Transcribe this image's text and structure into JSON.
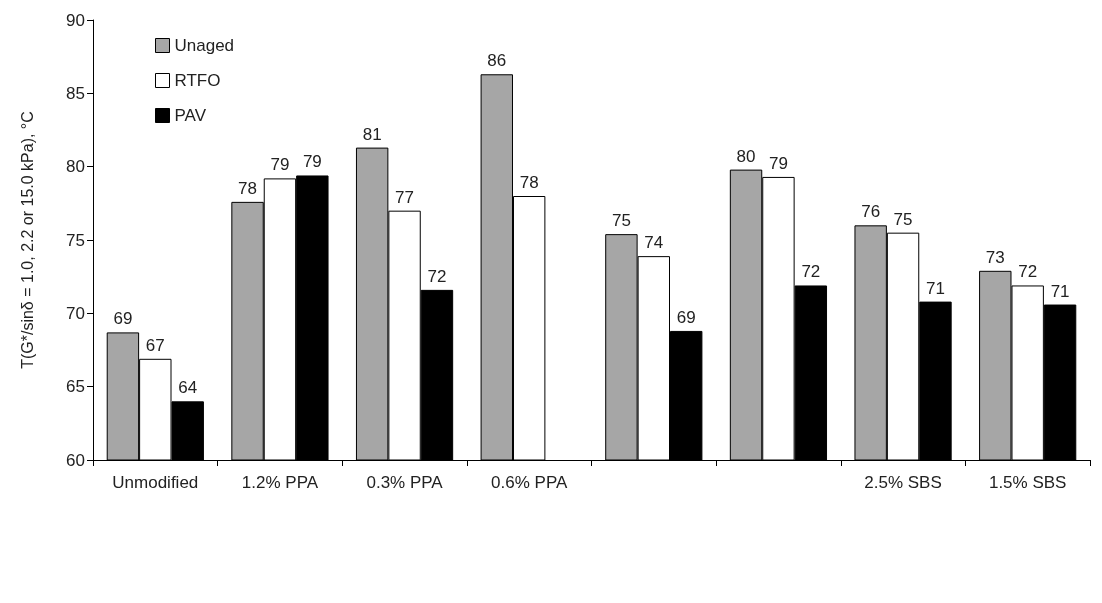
{
  "chart_data": {
    "type": "bar",
    "ylabel": "T(G*/sinδ = 1.0, 2.2 or 15.0 kPa), °C",
    "categories": [
      "Unmodified",
      "1.2% PPA",
      "0.3% PPA",
      "0.6% PPA",
      null,
      null,
      "2.5% SBS",
      "1.5% SBS"
    ],
    "series": [
      {
        "name": "Unaged",
        "color": "#a6a6a6",
        "values": [
          68.7,
          77.6,
          81.3,
          86.3,
          75.4,
          79.8,
          76.0,
          72.9
        ],
        "value_labels": [
          "69",
          "78",
          "81",
          "86",
          "75",
          "80",
          "76",
          "73"
        ]
      },
      {
        "name": "RTFO",
        "color": "#ffffff",
        "values": [
          66.9,
          79.2,
          77.0,
          78.0,
          73.9,
          79.3,
          75.5,
          71.9
        ],
        "value_labels": [
          "67",
          "79",
          "77",
          "78",
          "74",
          "79",
          "75",
          "72"
        ]
      },
      {
        "name": "PAV",
        "color": "#000000",
        "values": [
          64.0,
          79.4,
          71.6,
          null,
          68.8,
          71.9,
          70.8,
          70.6
        ],
        "value_labels": [
          "64",
          "79",
          "72",
          null,
          "69",
          "72",
          "71",
          "71"
        ]
      }
    ],
    "ylim": [
      60,
      90
    ],
    "yticks": [
      60,
      65,
      70,
      75,
      80,
      85,
      90
    ],
    "grid": false,
    "legend": "top left"
  }
}
